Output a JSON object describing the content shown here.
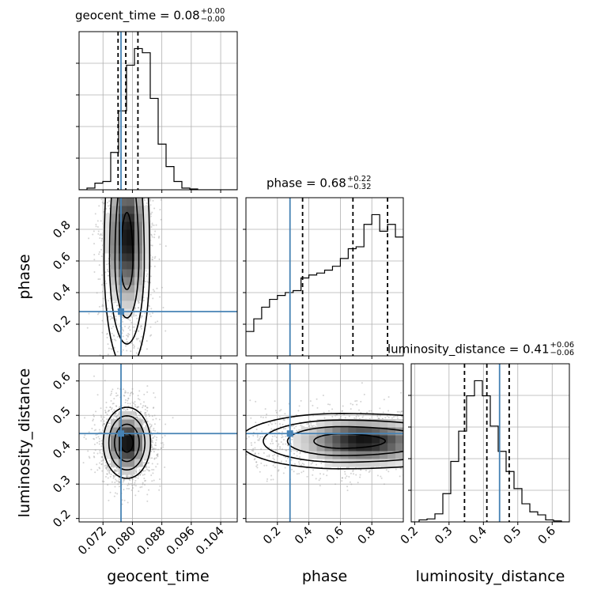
{
  "chart_data": {
    "type": "corner",
    "parameters": [
      "geocent_time",
      "phase",
      "luminosity_distance"
    ],
    "axis_labels": [
      "geocent_time",
      "phase",
      "luminosity_distance"
    ],
    "ranges": {
      "geocent_time": [
        0.0655,
        0.1085
      ],
      "phase": [
        0.0,
        1.0
      ],
      "luminosity_distance": [
        0.19,
        0.65
      ]
    },
    "ticks": {
      "geocent_time": [
        "0.072",
        "0.080",
        "0.088",
        "0.096",
        "0.104"
      ],
      "phase": [
        "0.2",
        "0.4",
        "0.6",
        "0.8"
      ],
      "luminosity_distance": [
        "0.2",
        "0.3",
        "0.4",
        "0.5",
        "0.6"
      ]
    },
    "diag_titles": [
      {
        "param": "geocent_time",
        "name": "geocent_time",
        "eq": "=",
        "value": "0.08",
        "plus": "+0.00",
        "minus": "−0.00"
      },
      {
        "param": "phase",
        "name": "phase",
        "eq": "=",
        "value": "0.68",
        "plus": "+0.22",
        "minus": "−0.32"
      },
      {
        "param": "luminosity_distance",
        "name": "luminosity_distance",
        "eq": "=",
        "value": "0.41",
        "plus": "+0.06",
        "minus": "−0.06"
      }
    ],
    "truths": {
      "geocent_time": 0.0769,
      "phase": 0.28,
      "luminosity_distance": 0.447
    },
    "quantiles": {
      "geocent_time": [
        0.0761,
        0.0782,
        0.0815
      ],
      "phase": [
        0.36,
        0.68,
        0.9
      ],
      "luminosity_distance": [
        0.345,
        0.41,
        0.475
      ]
    },
    "hist_geocent_time": {
      "edges_start": 0.0655,
      "bin_width": 0.00215,
      "counts": [
        0,
        2,
        8,
        10,
        45,
        95,
        150,
        170,
        165,
        110,
        55,
        28,
        10,
        2,
        1,
        0,
        0,
        0,
        0,
        0
      ]
    },
    "hist_phase": {
      "edges_start": 0.0,
      "bin_width": 0.05,
      "counts": [
        25,
        38,
        50,
        58,
        62,
        65,
        67,
        80,
        83,
        85,
        88,
        92,
        100,
        110,
        112,
        135,
        145,
        128,
        135,
        122
      ]
    },
    "hist_luminosity_distance": {
      "edges_start": 0.19,
      "bin_width": 0.023,
      "counts": [
        0,
        2,
        3,
        8,
        28,
        60,
        90,
        125,
        140,
        125,
        95,
        70,
        50,
        33,
        18,
        10,
        7,
        2,
        1,
        0
      ]
    },
    "density_2d": [
      {
        "x": "geocent_time",
        "y": "phase",
        "cx": 0.0785,
        "cy": 0.6,
        "sx": 0.0027,
        "sy": 0.3,
        "skew_y": 0.8
      },
      {
        "x": "geocent_time",
        "y": "luminosity_distance",
        "cx": 0.0785,
        "cy": 0.42,
        "sx": 0.0028,
        "sy": 0.045
      },
      {
        "x": "phase",
        "y": "luminosity_distance",
        "cx": 0.6,
        "cy": 0.425,
        "sx": 0.28,
        "sy": 0.035,
        "skew_x": 0.9
      }
    ],
    "grid": true,
    "colors": {
      "truth": "#4682b4",
      "hist": "#000000",
      "quantile": "#000000",
      "grid": "#b0b0b0",
      "scatter": "#9e9e9e"
    }
  }
}
